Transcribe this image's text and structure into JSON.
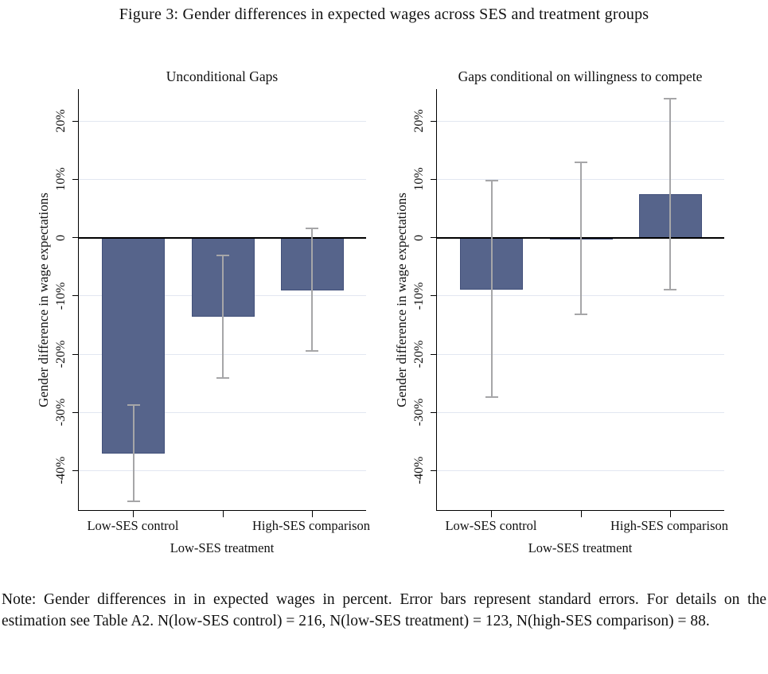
{
  "figure_title": "Figure 3: Gender differences in expected wages across SES and treatment groups",
  "figure_note": "Note: Gender differences in in expected wages in percent. Error bars represent standard errors. For details on the estimation see Table A2. N(low-SES control) = 216, N(low-SES treatment) = 123, N(high-SES comparison) = 88.",
  "colors": {
    "bar_fill": "#56648b",
    "bar_border": "#42507a",
    "error_bar": "#a6a6a8",
    "gridline": "#e2e7f1",
    "axis": "#000000"
  },
  "chart_data": [
    {
      "type": "bar",
      "title": "Unconditional Gaps",
      "ylabel": "Gender difference in wage expectations",
      "xlabel": "",
      "categories": [
        "Low-SES control",
        "Low-SES treatment",
        "High-SES comparison"
      ],
      "values": [
        -37.0,
        -13.6,
        -9.0
      ],
      "error_high": [
        -28.7,
        -3.0,
        1.6
      ],
      "error_low": [
        -45.2,
        -24.1,
        -19.4
      ],
      "ylim": [
        -46.9,
        25.5
      ],
      "yticks": [
        20,
        10,
        0,
        -10,
        -20,
        -30,
        -40
      ],
      "ytick_labels": [
        "20%",
        "10%",
        "0",
        "-10%",
        "-20%",
        "-30%",
        "-40%"
      ],
      "grid": true,
      "legend": "none"
    },
    {
      "type": "bar",
      "title": "Gaps conditional on willingness to compete",
      "ylabel": "Gender difference in wage expectations",
      "xlabel": "",
      "categories": [
        "Low-SES control",
        "Low-SES treatment",
        "High-SES comparison"
      ],
      "values": [
        -8.9,
        -0.3,
        7.5
      ],
      "error_high": [
        9.8,
        12.9,
        23.8
      ],
      "error_low": [
        -27.3,
        -13.2,
        -8.9
      ],
      "ylim": [
        -46.9,
        25.5
      ],
      "yticks": [
        20,
        10,
        0,
        -10,
        -20,
        -30,
        -40
      ],
      "ytick_labels": [
        "20%",
        "10%",
        "0",
        "-10%",
        "-20%",
        "-30%",
        "-40%"
      ],
      "grid": true,
      "legend": "none"
    }
  ]
}
